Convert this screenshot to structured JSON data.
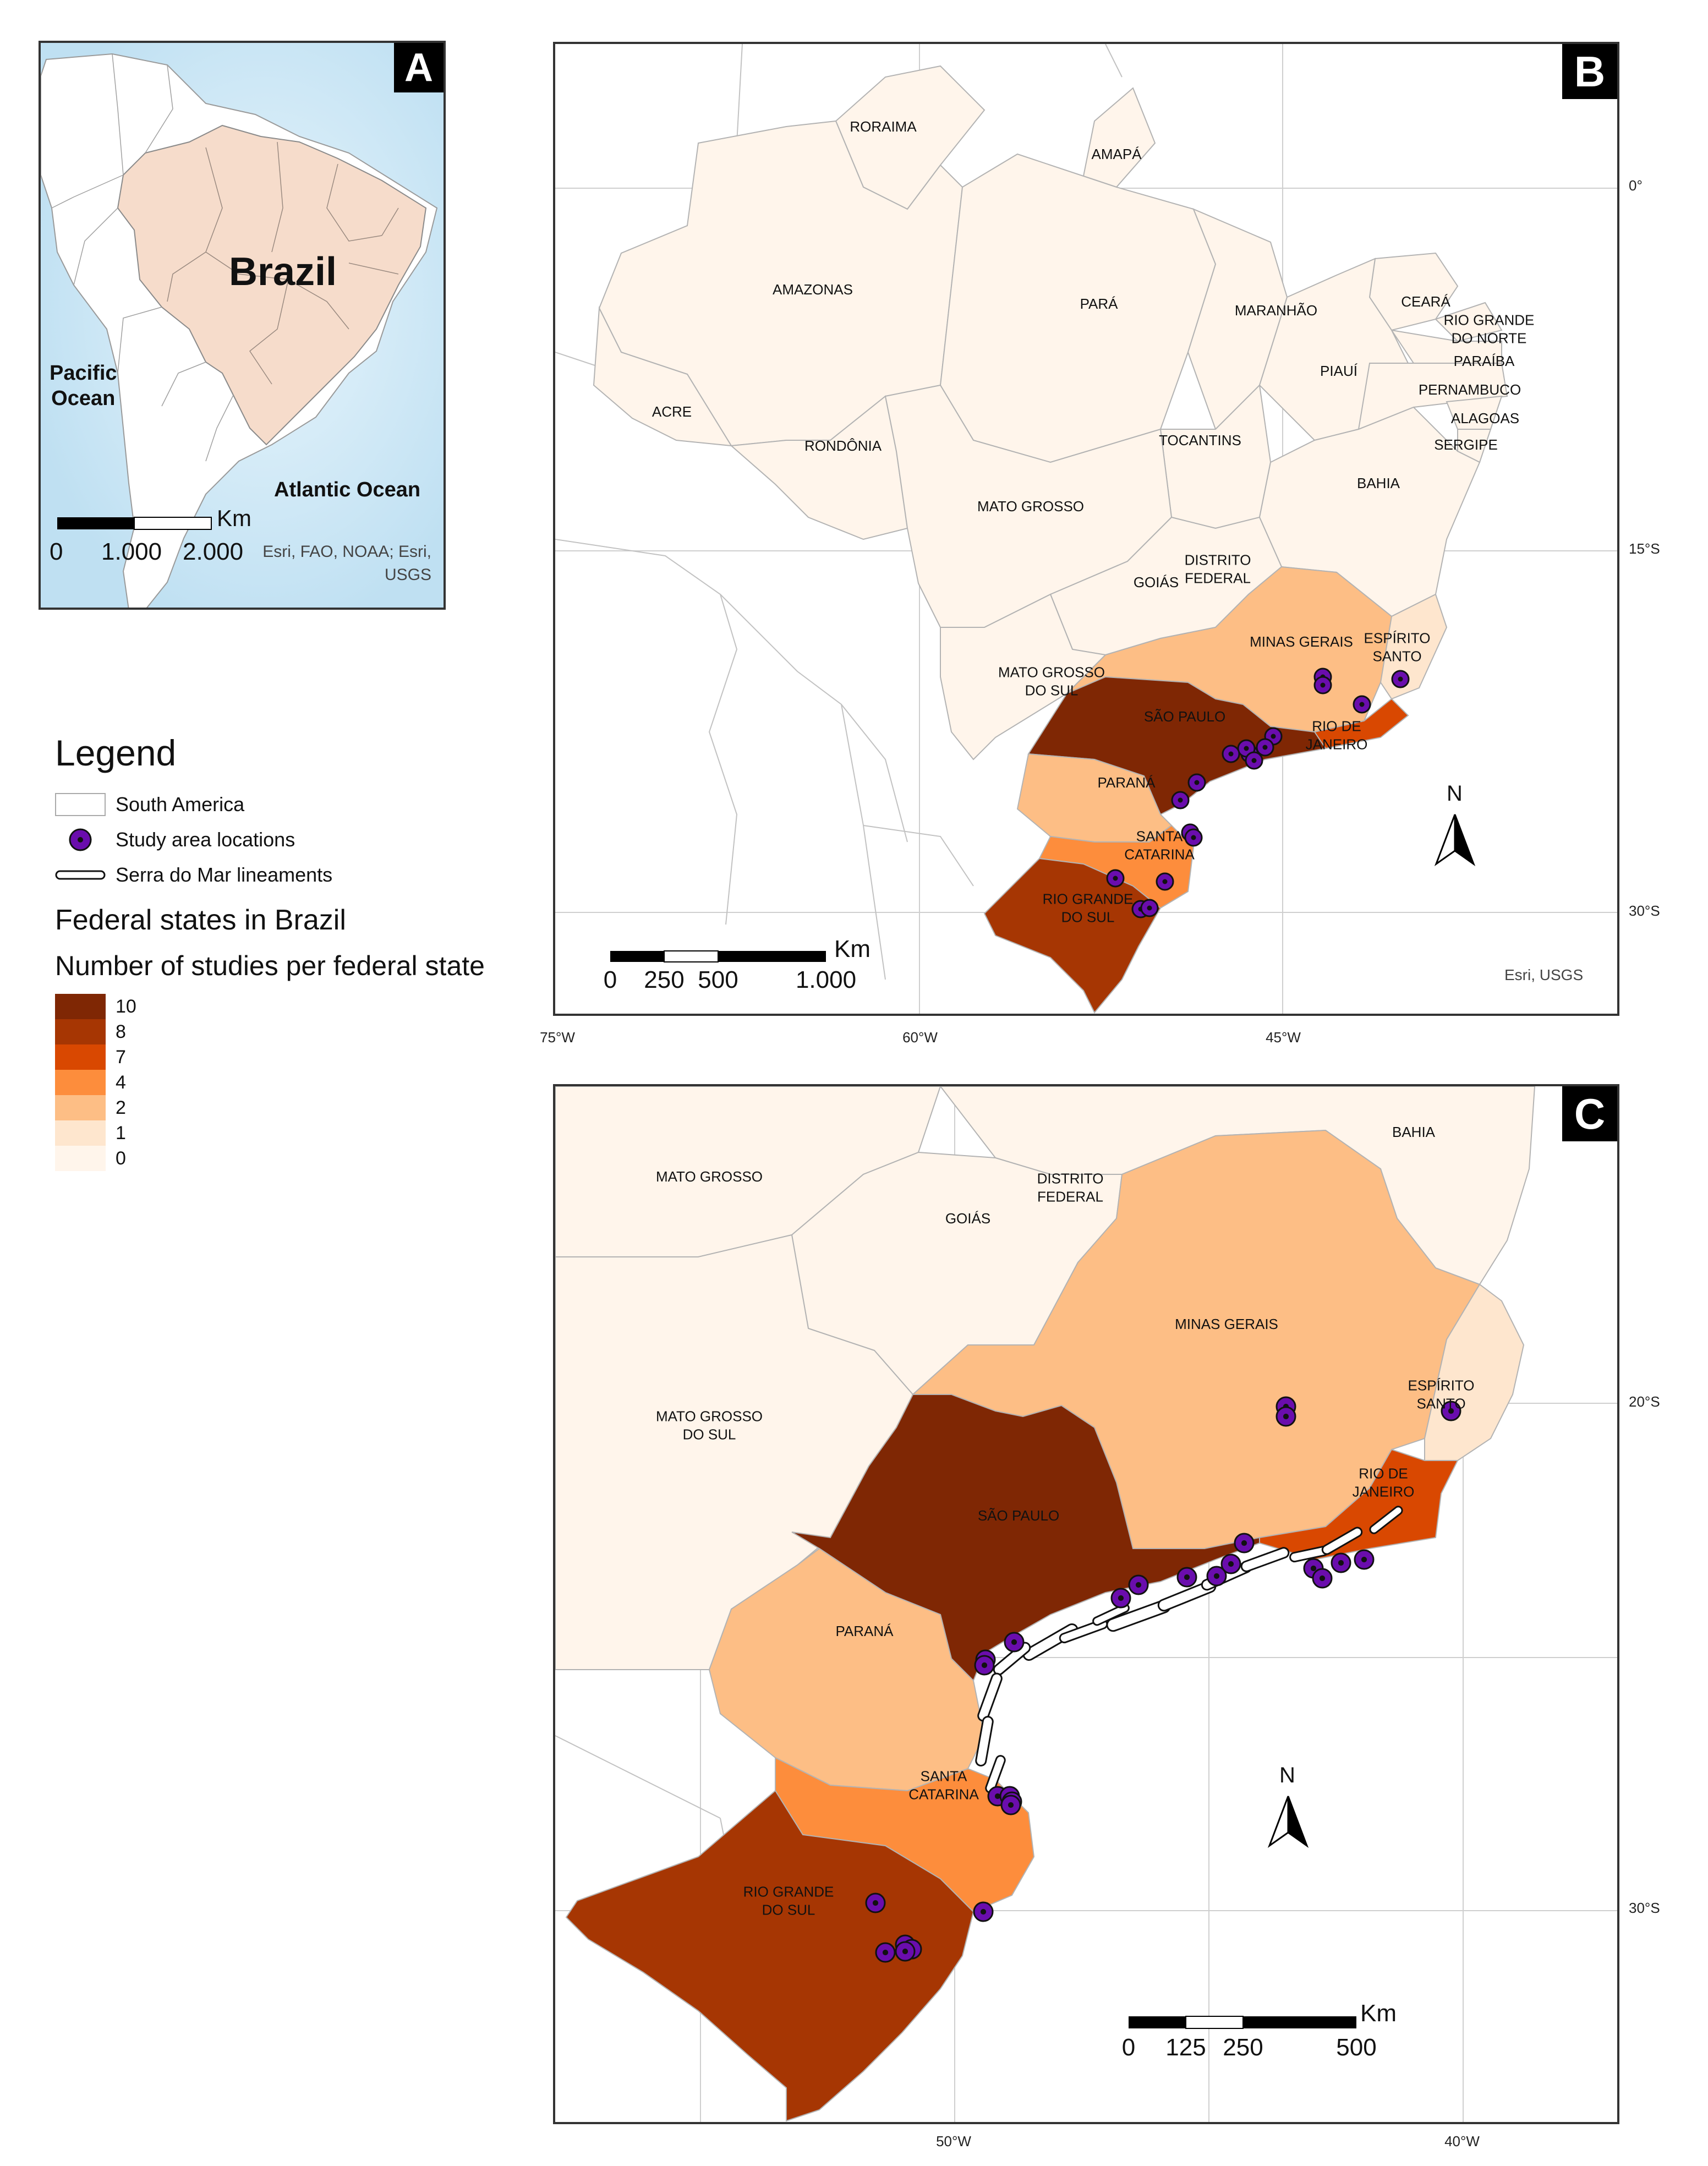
{
  "panels": {
    "a": {
      "label": "A",
      "country_label": "Brazil",
      "pacific_label": "Pacific\nOcean",
      "atlantic_label": "Atlantic Ocean",
      "scale_unit": "Km",
      "scale_ticks": [
        "0",
        "1.000",
        "2.000"
      ],
      "credit": "Esri, FAO, NOAA; Esri,\nUSGS"
    },
    "b": {
      "label": "B",
      "states": {
        "roraima": "RORAIMA",
        "amapa": "AMAPÁ",
        "amazonas": "AMAZONAS",
        "para": "PARÁ",
        "maranhao": "MARANHÃO",
        "ceara": "CEARÁ",
        "rio_grande_do_norte": "RIO GRANDE\nDO NORTE",
        "paraiba": "PARAÍBA",
        "piaui": "PIAUÍ",
        "pernambuco": "PERNAMBUCO",
        "alagoas": "ALAGOAS",
        "sergipe": "SERGIPE",
        "acre": "ACRE",
        "rondonia": "RONDÔNIA",
        "tocantins": "TOCANTINS",
        "bahia": "BAHIA",
        "mato_grosso": "MATO GROSSO",
        "distrito_federal": "DISTRITO\nFEDERAL",
        "goias": "GOIÁS",
        "minas_gerais": "MINAS GERAIS",
        "espirito_santo": "ESPÍRITO\nSANTO",
        "mato_grosso_do_sul": "MATO GROSSO\nDO SUL",
        "sao_paulo": "SÃO PAULO",
        "rio_de_janeiro": "RIO DE\nJANEIRO",
        "parana": "PARANÁ",
        "santa_catarina": "SANTA\nCATARINA",
        "rio_grande_do_sul": "RIO GRANDE\nDO SUL"
      },
      "lat_ticks": [
        "0°",
        "15°S",
        "30°S"
      ],
      "lon_ticks": [
        "75°W",
        "60°W",
        "45°W"
      ],
      "scale_unit": "Km",
      "scale_ticks": [
        "0",
        "250",
        "500",
        "1.000"
      ],
      "north": "N",
      "credit": "Esri, USGS"
    },
    "c": {
      "label": "C",
      "states": {
        "bahia": "BAHIA",
        "mato_grosso": "MATO GROSSO",
        "distrito_federal": "DISTRITO\nFEDERAL",
        "goias": "GOIÁS",
        "minas_gerais": "MINAS GERAIS",
        "espirito_santo": "ESPÍRITO\nSANTO",
        "mato_grosso_do_sul": "MATO GROSSO\nDO SUL",
        "rio_de_janeiro": "RIO DE\nJANEIRO",
        "sao_paulo": "SÃO PAULO",
        "parana": "PARANÁ",
        "santa_catarina": "SANTA\nCATARINA",
        "rio_grande_do_sul": "RIO GRANDE\nDO SUL"
      },
      "lat_ticks": [
        "20°S",
        "30°S"
      ],
      "lon_ticks": [
        "50°W",
        "40°W"
      ],
      "scale_unit": "Km",
      "scale_ticks": [
        "0",
        "125",
        "250",
        "500"
      ],
      "north": "N"
    }
  },
  "legend": {
    "title": "Legend",
    "items": [
      "South America",
      "Study area locations",
      "Serra do Mar lineaments"
    ],
    "states_title": "Federal states in Brazil",
    "classes_title": "Number of studies per federal state",
    "classes": [
      {
        "label": "10",
        "color": "#7f2704"
      },
      {
        "label": "8",
        "color": "#a63603"
      },
      {
        "label": "7",
        "color": "#d94801"
      },
      {
        "label": "4",
        "color": "#fd8d3c"
      },
      {
        "label": "2",
        "color": "#fdbe85"
      },
      {
        "label": "1",
        "color": "#fee6ce"
      },
      {
        "label": "0",
        "color": "#fff5eb"
      }
    ],
    "point_color": "#6a0dad"
  },
  "study_counts": {
    "sao_paulo": 10,
    "rio_grande_do_sul": 8,
    "rio_de_janeiro": 7,
    "santa_catarina": 4,
    "parana": 2,
    "minas_gerais": 2,
    "espirito_santo": 1,
    "other_states": 0
  }
}
